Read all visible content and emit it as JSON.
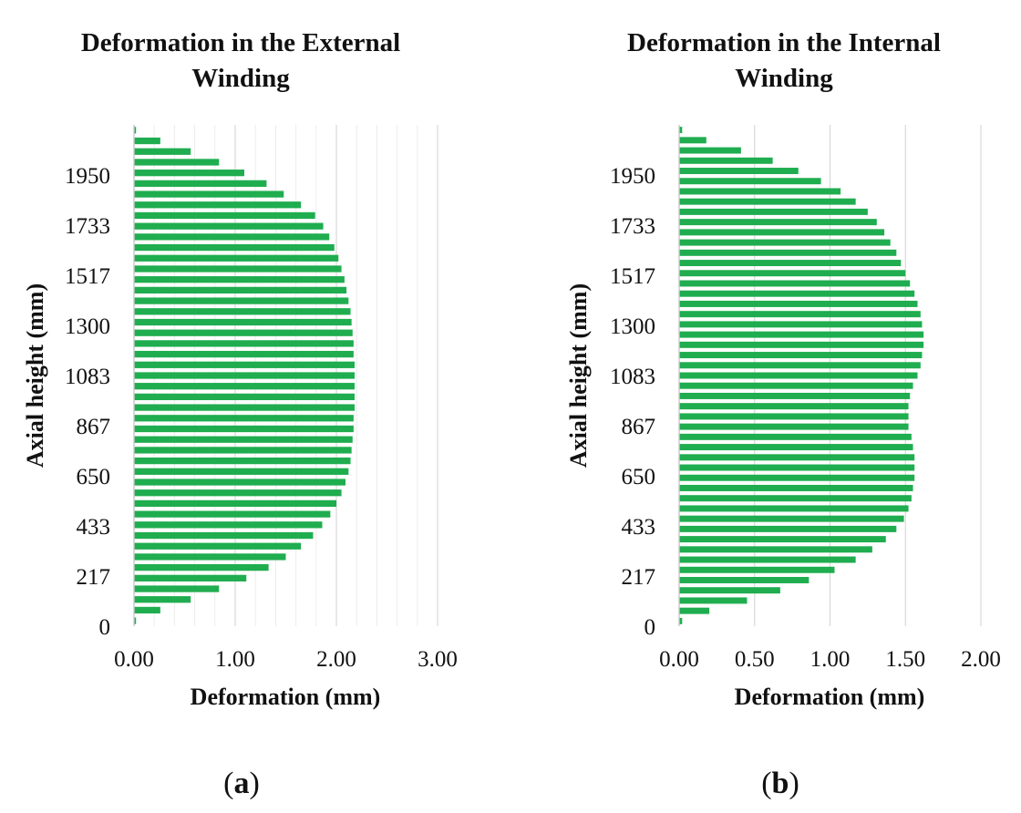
{
  "chart_data": [
    {
      "type": "bar",
      "orientation": "horizontal",
      "panel_label": "a",
      "title": [
        "Deformation in the External",
        "Winding"
      ],
      "xlabel": "Deformation (mm)",
      "ylabel": "Axial height (mm)",
      "xlim": [
        0,
        3
      ],
      "xticks": [
        "0.00",
        "1.00",
        "2.00",
        "3.00"
      ],
      "xtick_values": [
        0,
        1,
        2,
        3
      ],
      "minor_grid_step": 0.2,
      "ylim": [
        0,
        2167
      ],
      "yticks": [
        "0",
        "217",
        "433",
        "650",
        "867",
        "1083",
        "1300",
        "1517",
        "1733",
        "1950"
      ],
      "ytick_values": [
        0,
        217,
        433,
        650,
        867,
        1083,
        1300,
        1517,
        1733,
        1950
      ],
      "bar_color": "#1fad4f",
      "values": [
        0.02,
        0.26,
        0.56,
        0.84,
        1.11,
        1.33,
        1.5,
        1.65,
        1.77,
        1.86,
        1.94,
        2.0,
        2.05,
        2.09,
        2.12,
        2.14,
        2.15,
        2.16,
        2.17,
        2.17,
        2.18,
        2.18,
        2.18,
        2.18,
        2.18,
        2.17,
        2.17,
        2.16,
        2.15,
        2.14,
        2.12,
        2.1,
        2.08,
        2.05,
        2.02,
        1.98,
        1.93,
        1.87,
        1.79,
        1.65,
        1.48,
        1.31,
        1.09,
        0.84,
        0.56,
        0.26,
        0.02
      ]
    },
    {
      "type": "bar",
      "orientation": "horizontal",
      "panel_label": "b",
      "title": [
        "Deformation in the Internal",
        "Winding"
      ],
      "xlabel": "Deformation (mm)",
      "ylabel": "Axial height (mm)",
      "xlim": [
        0,
        2
      ],
      "xticks": [
        "0.00",
        "0.50",
        "1.00",
        "1.50",
        "2.00"
      ],
      "xtick_values": [
        0,
        0.5,
        1,
        1.5,
        2
      ],
      "minor_grid_step": 0,
      "ylim": [
        0,
        2167
      ],
      "yticks": [
        "0",
        "217",
        "433",
        "650",
        "867",
        "1083",
        "1300",
        "1517",
        "1733",
        "1950"
      ],
      "ytick_values": [
        0,
        217,
        433,
        650,
        867,
        1083,
        1300,
        1517,
        1733,
        1950
      ],
      "bar_color": "#1fad4f",
      "values": [
        0.02,
        0.2,
        0.45,
        0.67,
        0.86,
        1.03,
        1.17,
        1.28,
        1.37,
        1.44,
        1.49,
        1.52,
        1.54,
        1.55,
        1.56,
        1.56,
        1.56,
        1.55,
        1.54,
        1.52,
        1.52,
        1.52,
        1.53,
        1.55,
        1.58,
        1.6,
        1.61,
        1.62,
        1.62,
        1.61,
        1.6,
        1.58,
        1.56,
        1.53,
        1.5,
        1.47,
        1.44,
        1.4,
        1.36,
        1.31,
        1.25,
        1.17,
        1.07,
        0.94,
        0.79,
        0.62,
        0.41,
        0.18,
        0.02
      ]
    }
  ]
}
